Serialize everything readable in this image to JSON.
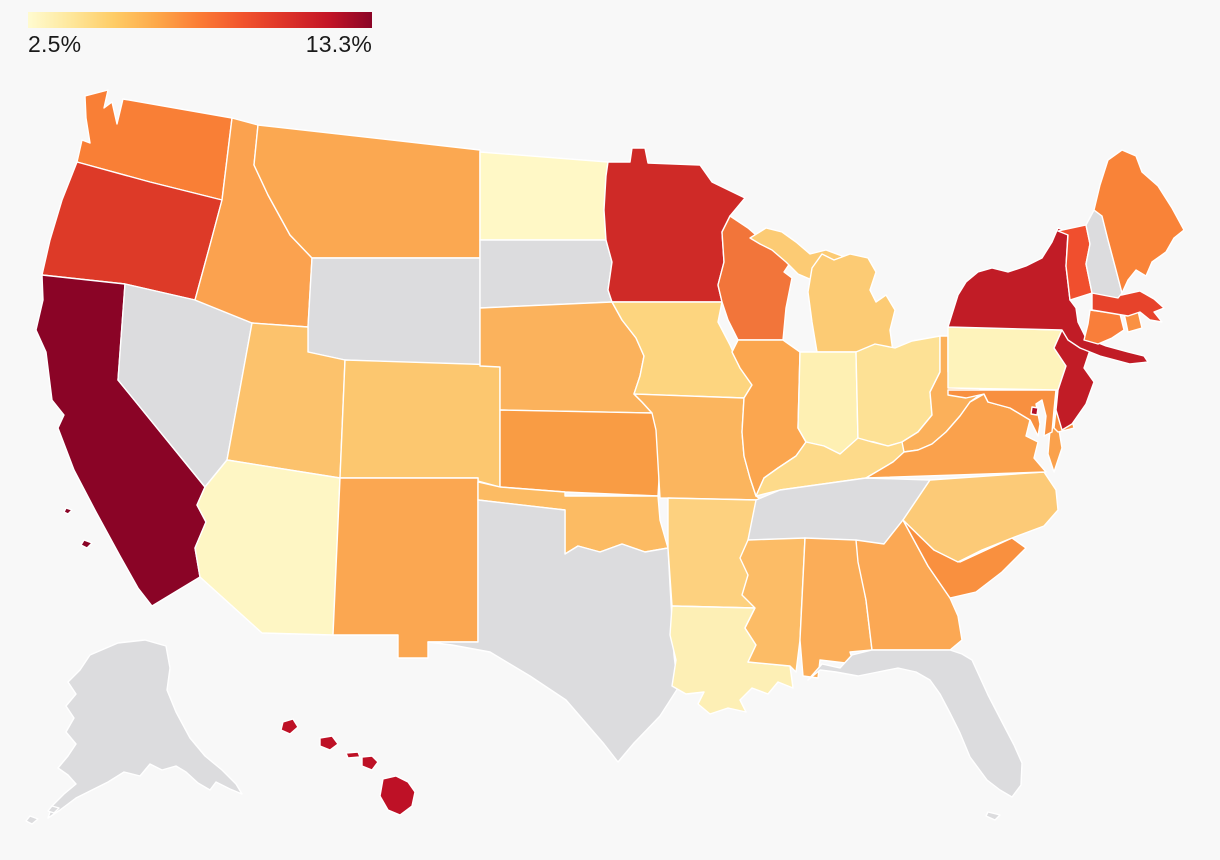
{
  "page": {
    "background": "#f8f8f8"
  },
  "legend": {
    "min_label": "2.5%",
    "max_label": "13.3%",
    "gradient_stops": [
      "#fffbd0",
      "#fee79b",
      "#fecc66",
      "#fda849",
      "#fb7b35",
      "#f1532c",
      "#dd3228",
      "#c31426",
      "#8a0426"
    ]
  },
  "map": {
    "no_data_color": "#dcdcde",
    "border_color": "#ffffff"
  },
  "chart_data": {
    "type": "choropleth_map",
    "region": "United States",
    "colorscale": {
      "min": 2.5,
      "max": 13.3,
      "unit": "%",
      "min_label": "2.5%",
      "max_label": "13.3%",
      "palette": "light yellow to dark red (YlOrRd-style sequential)"
    },
    "no_data_states": [
      "AK",
      "FL",
      "NH",
      "NV",
      "SD",
      "TN",
      "TX",
      "WY"
    ],
    "states": [
      {
        "abbr": "AL",
        "name": "Alabama",
        "fill": "#fbad58",
        "value_pct_est": 6.6,
        "no_data": false
      },
      {
        "abbr": "AK",
        "name": "Alaska",
        "fill": null,
        "value_pct_est": null,
        "no_data": true
      },
      {
        "abbr": "AZ",
        "name": "Arizona",
        "fill": "#fef6c4",
        "value_pct_est": 2.9,
        "no_data": false
      },
      {
        "abbr": "AR",
        "name": "Arkansas",
        "fill": "#fdd17f",
        "value_pct_est": 4.8,
        "no_data": false
      },
      {
        "abbr": "CA",
        "name": "California",
        "fill": "#8a0426",
        "value_pct_est": 13.3,
        "no_data": false
      },
      {
        "abbr": "CO",
        "name": "Colorado",
        "fill": "#fcc76f",
        "value_pct_est": 5.4,
        "no_data": false
      },
      {
        "abbr": "CT",
        "name": "Connecticut",
        "fill": "#f97e3a",
        "value_pct_est": 8.5,
        "no_data": false
      },
      {
        "abbr": "DE",
        "name": "Delaware",
        "fill": "#f89040",
        "value_pct_est": 8.0,
        "no_data": false
      },
      {
        "abbr": "DC",
        "name": "District of Columbia",
        "fill": "#b00d26",
        "value_pct_est": 12.3,
        "no_data": false
      },
      {
        "abbr": "FL",
        "name": "Florida",
        "fill": null,
        "value_pct_est": null,
        "no_data": true
      },
      {
        "abbr": "GA",
        "name": "Georgia",
        "fill": "#fba854",
        "value_pct_est": 6.8,
        "no_data": false
      },
      {
        "abbr": "HI",
        "name": "Hawaii",
        "fill": "#be1126",
        "value_pct_est": 11.9,
        "no_data": false
      },
      {
        "abbr": "ID",
        "name": "Idaho",
        "fill": "#fba24f",
        "value_pct_est": 7.0,
        "no_data": false
      },
      {
        "abbr": "IL",
        "name": "Illinois",
        "fill": "#fba64f",
        "value_pct_est": 6.9,
        "no_data": false
      },
      {
        "abbr": "IN",
        "name": "Indiana",
        "fill": "#fef0b3",
        "value_pct_est": 3.3,
        "no_data": false
      },
      {
        "abbr": "IA",
        "name": "Iowa",
        "fill": "#fdd57f",
        "value_pct_est": 4.7,
        "no_data": false
      },
      {
        "abbr": "KS",
        "name": "Kansas",
        "fill": "#f99c44",
        "value_pct_est": 7.5,
        "no_data": false
      },
      {
        "abbr": "KY",
        "name": "Kentucky",
        "fill": "#fdda8a",
        "value_pct_est": 4.4,
        "no_data": false
      },
      {
        "abbr": "LA",
        "name": "Louisiana",
        "fill": "#fdefb5",
        "value_pct_est": 3.4,
        "no_data": false
      },
      {
        "abbr": "ME",
        "name": "Maine",
        "fill": "#f98338",
        "value_pct_est": 8.4,
        "no_data": false
      },
      {
        "abbr": "MD",
        "name": "Maryland",
        "fill": "#f89040",
        "value_pct_est": 8.0,
        "no_data": false
      },
      {
        "abbr": "MA",
        "name": "Massachusetts",
        "fill": "#e7432b",
        "value_pct_est": 10.3,
        "no_data": false
      },
      {
        "abbr": "MI",
        "name": "Michigan",
        "fill": "#fccb74",
        "value_pct_est": 5.1,
        "no_data": false
      },
      {
        "abbr": "MN",
        "name": "Minnesota",
        "fill": "#cf2a27",
        "value_pct_est": 11.2,
        "no_data": false
      },
      {
        "abbr": "MS",
        "name": "Mississippi",
        "fill": "#fcbc66",
        "value_pct_est": 5.8,
        "no_data": false
      },
      {
        "abbr": "MO",
        "name": "Missouri",
        "fill": "#fbb55e",
        "value_pct_est": 6.2,
        "no_data": false
      },
      {
        "abbr": "MT",
        "name": "Montana",
        "fill": "#fba851",
        "value_pct_est": 6.8,
        "no_data": false
      },
      {
        "abbr": "NE",
        "name": "Nebraska",
        "fill": "#fbb25c",
        "value_pct_est": 6.3,
        "no_data": false
      },
      {
        "abbr": "NV",
        "name": "Nevada",
        "fill": null,
        "value_pct_est": null,
        "no_data": true
      },
      {
        "abbr": "NH",
        "name": "New Hampshire",
        "fill": null,
        "value_pct_est": null,
        "no_data": true
      },
      {
        "abbr": "NJ",
        "name": "New Jersey",
        "fill": "#c11c26",
        "value_pct_est": 11.8,
        "no_data": false
      },
      {
        "abbr": "NM",
        "name": "New Mexico",
        "fill": "#fba751",
        "value_pct_est": 6.9,
        "no_data": false
      },
      {
        "abbr": "NY",
        "name": "New York",
        "fill": "#c11c26",
        "value_pct_est": 11.8,
        "no_data": false
      },
      {
        "abbr": "NC",
        "name": "North Carolina",
        "fill": "#fcca77",
        "value_pct_est": 5.1,
        "no_data": false
      },
      {
        "abbr": "ND",
        "name": "North Dakota",
        "fill": "#fff8c6",
        "value_pct_est": 2.6,
        "no_data": false
      },
      {
        "abbr": "OH",
        "name": "Ohio",
        "fill": "#fde195",
        "value_pct_est": 4.1,
        "no_data": false
      },
      {
        "abbr": "OK",
        "name": "Oklahoma",
        "fill": "#fcbb63",
        "value_pct_est": 5.8,
        "no_data": false
      },
      {
        "abbr": "OR",
        "name": "Oregon",
        "fill": "#dd3a28",
        "value_pct_est": 10.7,
        "no_data": false
      },
      {
        "abbr": "PA",
        "name": "Pennsylvania",
        "fill": "#fef3bb",
        "value_pct_est": 3.0,
        "no_data": false
      },
      {
        "abbr": "RI",
        "name": "Rhode Island",
        "fill": "#fa9143",
        "value_pct_est": 8.0,
        "no_data": false
      },
      {
        "abbr": "SC",
        "name": "South Carolina",
        "fill": "#f9903f",
        "value_pct_est": 8.0,
        "no_data": false
      },
      {
        "abbr": "SD",
        "name": "South Dakota",
        "fill": null,
        "value_pct_est": null,
        "no_data": true
      },
      {
        "abbr": "TN",
        "name": "Tennessee",
        "fill": null,
        "value_pct_est": null,
        "no_data": true
      },
      {
        "abbr": "TX",
        "name": "Texas",
        "fill": null,
        "value_pct_est": null,
        "no_data": true
      },
      {
        "abbr": "UT",
        "name": "Utah",
        "fill": "#fcc26c",
        "value_pct_est": 5.5,
        "no_data": false
      },
      {
        "abbr": "VT",
        "name": "Vermont",
        "fill": "#f04f2e",
        "value_pct_est": 9.9,
        "no_data": false
      },
      {
        "abbr": "VA",
        "name": "Virginia",
        "fill": "#faa14c",
        "value_pct_est": 7.1,
        "no_data": false
      },
      {
        "abbr": "WA",
        "name": "Washington",
        "fill": "#f97f36",
        "value_pct_est": 8.5,
        "no_data": false
      },
      {
        "abbr": "WV",
        "name": "West Virginia",
        "fill": "#fbb05a",
        "value_pct_est": 6.4,
        "no_data": false
      },
      {
        "abbr": "WI",
        "name": "Wisconsin",
        "fill": "#f2753a",
        "value_pct_est": 8.8,
        "no_data": false
      },
      {
        "abbr": "WY",
        "name": "Wyoming",
        "fill": null,
        "value_pct_est": null,
        "no_data": true
      }
    ]
  }
}
